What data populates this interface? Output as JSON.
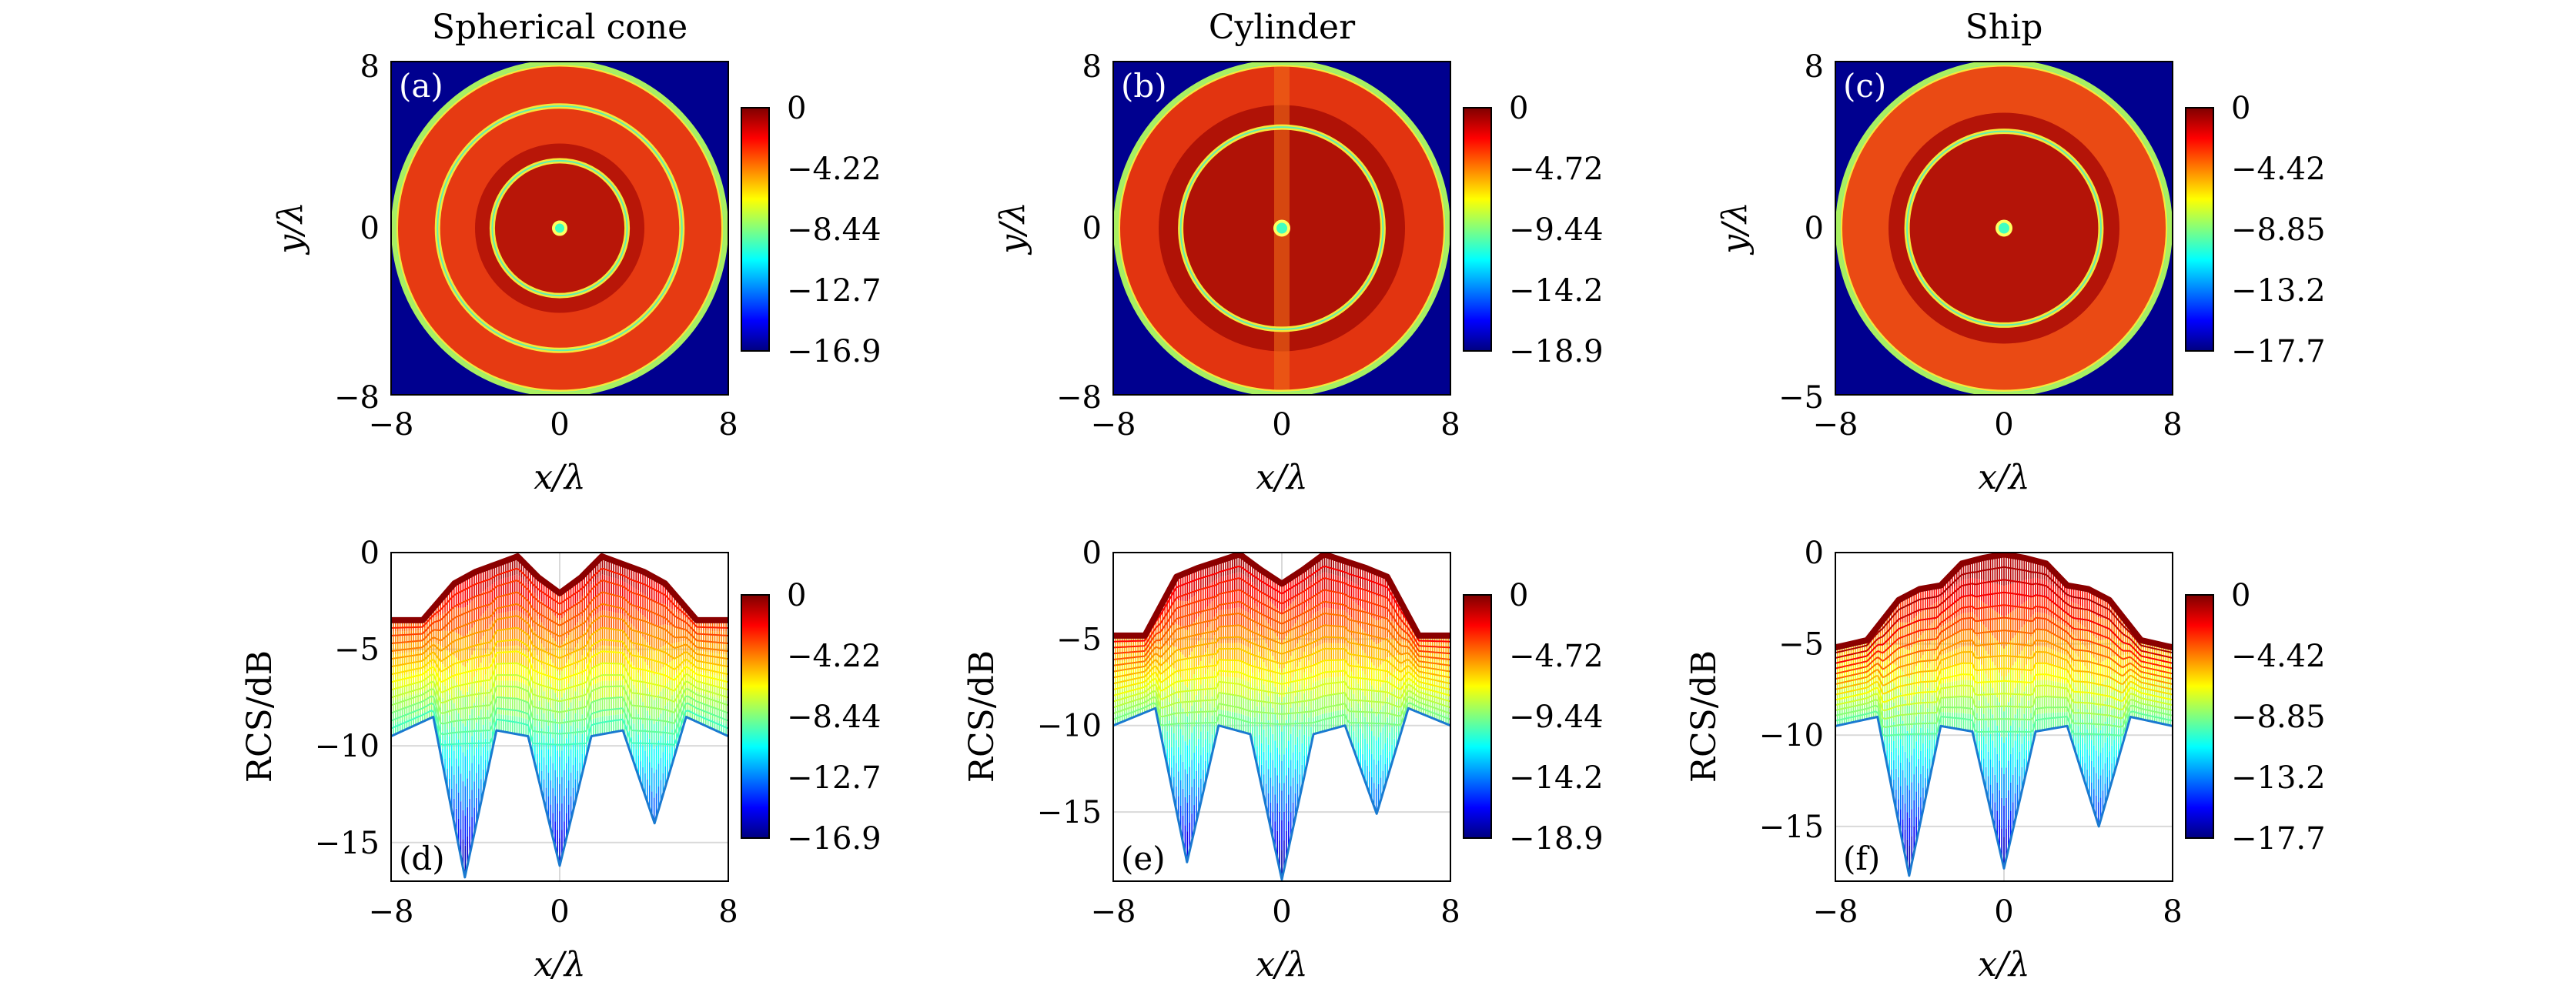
{
  "chart_data": [
    {
      "id": "a",
      "type": "heatmap",
      "panel_label": "(a)",
      "title": "Spherical cone",
      "xlabel": "x/λ",
      "ylabel": "y/λ",
      "xlim": [
        -8,
        8
      ],
      "ylim": [
        -8,
        8
      ],
      "xticks": [
        "−8",
        "0",
        "8"
      ],
      "yticks": [
        "8",
        "0",
        "−8"
      ],
      "colorbar": {
        "range": [
          -16.9,
          0
        ],
        "ticks": [
          "0",
          "−4.22",
          "−8.44",
          "−12.7",
          "−16.9"
        ]
      },
      "rings_r": [
        3.2,
        5.8,
        7.8
      ]
    },
    {
      "id": "b",
      "type": "heatmap",
      "panel_label": "(b)",
      "title": "Cylinder",
      "xlabel": "x/λ",
      "ylabel": "y/λ",
      "xlim": [
        -8,
        8
      ],
      "ylim": [
        -8,
        8
      ],
      "xticks": [
        "−8",
        "0",
        "8"
      ],
      "yticks": [
        "8",
        "0",
        "−8"
      ],
      "colorbar": {
        "range": [
          -18.9,
          0
        ],
        "ticks": [
          "0",
          "−4.72",
          "−9.44",
          "−14.2",
          "−18.9"
        ]
      },
      "rings_r": [
        4.8,
        7.8
      ]
    },
    {
      "id": "c",
      "type": "heatmap",
      "panel_label": "(c)",
      "title": "Ship",
      "xlabel": "x/λ",
      "ylabel": "y/λ",
      "xlim": [
        -8,
        8
      ],
      "ylim": [
        -8,
        8
      ],
      "xticks": [
        "−8",
        "0",
        "8"
      ],
      "yticks": [
        "8",
        "0",
        "−5"
      ],
      "colorbar": {
        "range": [
          -17.7,
          0
        ],
        "ticks": [
          "0",
          "−4.42",
          "−8.85",
          "−13.2",
          "−17.7"
        ]
      },
      "rings_r": [
        4.6,
        7.8
      ]
    },
    {
      "id": "d",
      "type": "area",
      "panel_label": "(d)",
      "xlabel": "x/λ",
      "ylabel": "RCS/dB",
      "xlim": [
        -8,
        8
      ],
      "ylim": [
        -17,
        0
      ],
      "xticks": [
        "−8",
        "0",
        "8"
      ],
      "yticks": [
        "0",
        "−5",
        "−10",
        "−15"
      ],
      "upper": {
        "x": [
          -8,
          -6.5,
          -5,
          -4,
          -3,
          -2,
          -1,
          0,
          1,
          2,
          3,
          4,
          5,
          6.5,
          8
        ],
        "y": [
          -3.5,
          -3.5,
          -1.6,
          -1.0,
          -0.6,
          -0.2,
          -1.3,
          -2.1,
          -1.3,
          -0.2,
          -0.6,
          -1.0,
          -1.6,
          -3.5,
          -3.5
        ]
      },
      "lower": {
        "x": [
          -8,
          -6,
          -4.5,
          -3,
          -1.5,
          0,
          1.5,
          3,
          4.5,
          6,
          8
        ],
        "y": [
          -9.5,
          -8.5,
          -16.8,
          -9.2,
          -9.5,
          -16.2,
          -9.5,
          -9.2,
          -14.0,
          -8.5,
          -9.5
        ]
      },
      "colorbar": {
        "range": [
          -16.9,
          0
        ],
        "ticks": [
          "0",
          "−4.22",
          "−8.44",
          "−12.7",
          "−16.9"
        ]
      }
    },
    {
      "id": "e",
      "type": "area",
      "panel_label": "(e)",
      "xlabel": "x/λ",
      "ylabel": "RCS/dB",
      "xlim": [
        -8,
        8
      ],
      "ylim": [
        -19,
        0
      ],
      "xticks": [
        "−8",
        "0",
        "8"
      ],
      "yticks": [
        "0",
        "−5",
        "−10",
        "−15"
      ],
      "upper": {
        "x": [
          -8,
          -6.5,
          -5,
          -4,
          -3,
          -2,
          -1,
          0,
          1,
          2,
          3,
          4,
          5,
          6.5,
          8
        ],
        "y": [
          -4.8,
          -4.8,
          -1.4,
          -0.9,
          -0.5,
          -0.1,
          -1.0,
          -1.8,
          -1.0,
          -0.1,
          -0.5,
          -0.9,
          -1.4,
          -4.8,
          -4.8
        ]
      },
      "lower": {
        "x": [
          -8,
          -6,
          -4.5,
          -3,
          -1.5,
          0,
          1.5,
          3,
          4.5,
          6,
          8
        ],
        "y": [
          -10.0,
          -9.0,
          -17.9,
          -10.0,
          -10.5,
          -18.9,
          -10.5,
          -10.0,
          -15.1,
          -9.0,
          -10.0
        ]
      },
      "colorbar": {
        "range": [
          -18.9,
          0
        ],
        "ticks": [
          "0",
          "−4.72",
          "−9.44",
          "−14.2",
          "−18.9"
        ]
      }
    },
    {
      "id": "f",
      "type": "area",
      "panel_label": "(f)",
      "xlabel": "x/λ",
      "ylabel": "RCS/dB",
      "xlim": [
        -8,
        8
      ],
      "ylim": [
        -18,
        0
      ],
      "xticks": [
        "−8",
        "0",
        "8"
      ],
      "yticks": [
        "0",
        "−5",
        "−10",
        "−15"
      ],
      "upper": {
        "x": [
          -8,
          -6.5,
          -5,
          -4,
          -3,
          -2,
          -1,
          0,
          1,
          2,
          3,
          4,
          5,
          6.5,
          8
        ],
        "y": [
          -5.2,
          -4.8,
          -2.6,
          -2.0,
          -1.8,
          -0.6,
          -0.3,
          -0.1,
          -0.3,
          -0.6,
          -1.8,
          -2.0,
          -2.6,
          -4.8,
          -5.2
        ]
      },
      "lower": {
        "x": [
          -8,
          -6,
          -4.5,
          -3,
          -1.5,
          0,
          1.5,
          3,
          4.5,
          6,
          8
        ],
        "y": [
          -9.5,
          -9.0,
          -17.7,
          -9.5,
          -9.8,
          -17.3,
          -9.8,
          -9.5,
          -15.0,
          -9.0,
          -9.5
        ]
      },
      "colorbar": {
        "range": [
          -17.7,
          0
        ],
        "ticks": [
          "0",
          "−4.42",
          "−8.85",
          "−13.2",
          "−17.7"
        ]
      }
    }
  ]
}
